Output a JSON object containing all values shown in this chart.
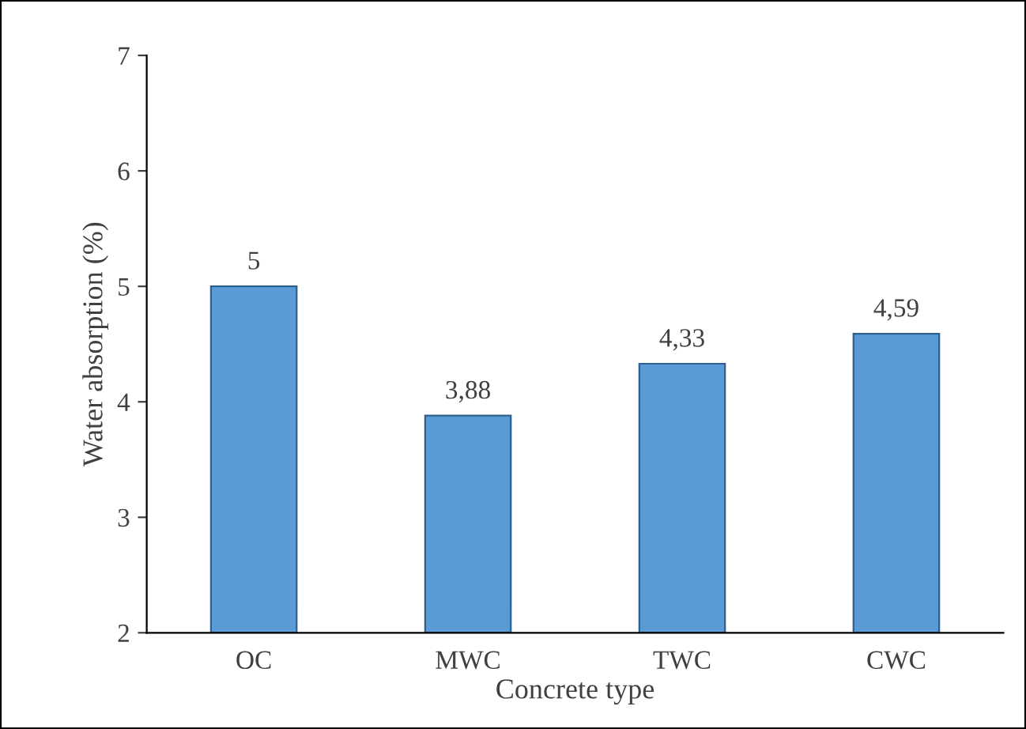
{
  "chart_data": {
    "type": "bar",
    "xlabel": "Concrete type",
    "ylabel": "Water absorption (%)",
    "categories": [
      "OC",
      "MWC",
      "TWC",
      "CWC"
    ],
    "values": [
      5,
      3.88,
      4.33,
      4.59
    ],
    "value_labels": [
      "5",
      "3,88",
      "4,33",
      "4,59"
    ],
    "color": "#5b9bd5",
    "ylim": [
      2,
      7
    ],
    "yticks": [
      2,
      3,
      4,
      5,
      6,
      7
    ],
    "grid": false,
    "legend": false
  }
}
